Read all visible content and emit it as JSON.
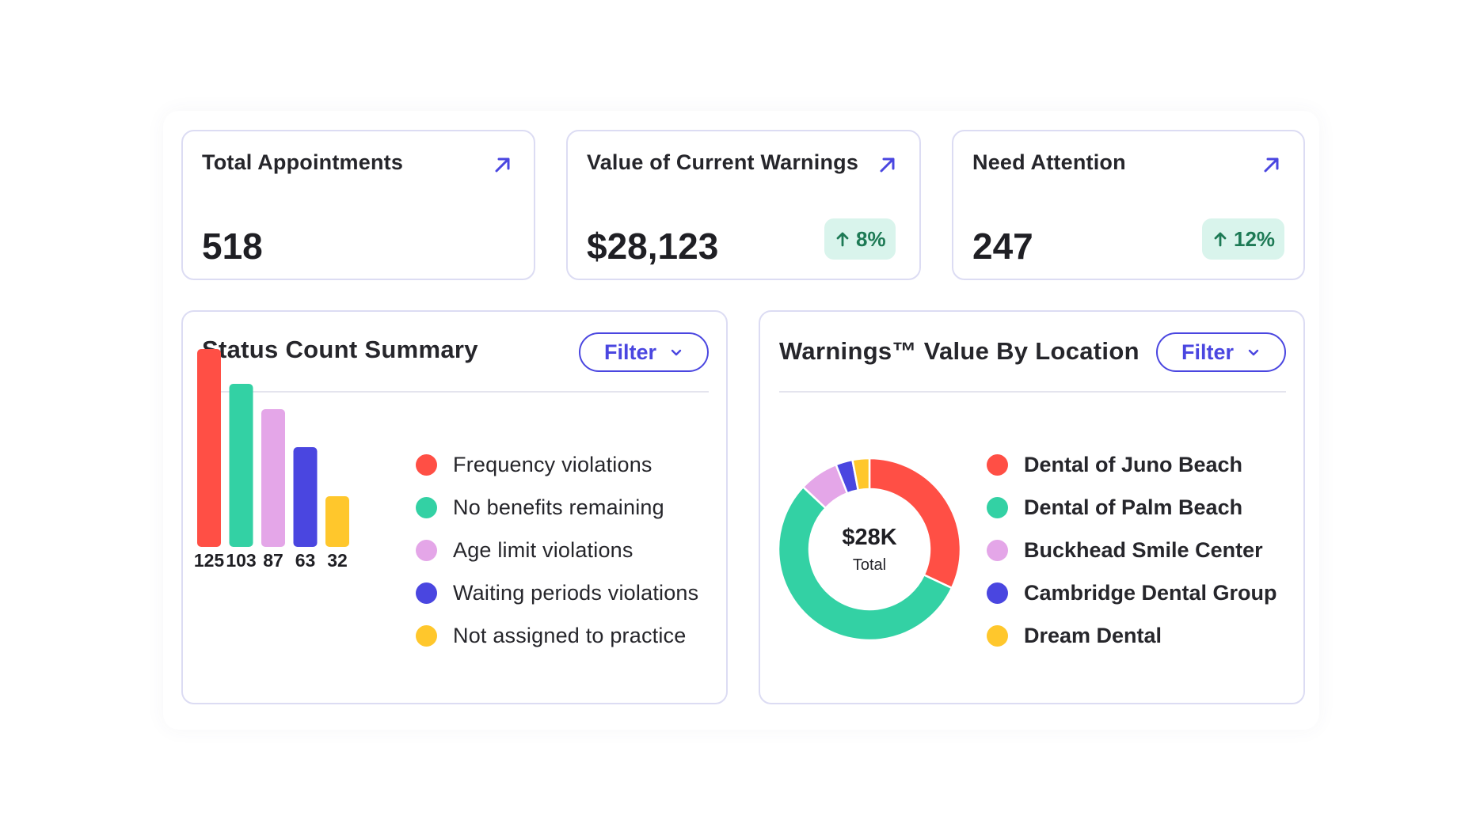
{
  "cards": [
    {
      "title": "Total Appointments",
      "value": "518",
      "badge": ""
    },
    {
      "title": "Value of Current Warnings",
      "value": "$28,123",
      "badge": "8%"
    },
    {
      "title": "Need Attention",
      "value": "247",
      "badge": "12%"
    }
  ],
  "icons": {
    "open": "arrow-up-right-icon",
    "trend": "arrow-up-icon",
    "dropdown": "chevron-down-icon"
  },
  "colors": {
    "accent": "#4a46e0",
    "badge_bg": "#d9f4ec",
    "badge_text": "#1d7a55"
  },
  "status_panel": {
    "title": "Status Count Summary",
    "filter_label": "Filter"
  },
  "location_panel": {
    "title": "Warnings™ Value By Location",
    "filter_label": "Filter"
  },
  "chart_data": [
    {
      "type": "bar",
      "title": "Status Count Summary",
      "categories": [
        "Frequency violations",
        "No benefits remaining",
        "Age limit violations",
        "Waiting periods violations",
        "Not assigned to practice"
      ],
      "values": [
        125,
        103,
        87,
        63,
        32
      ],
      "colors": [
        "#ff4f45",
        "#33d1a4",
        "#e4a6e8",
        "#4a46e0",
        "#ffc72c"
      ],
      "ylim": [
        0,
        125
      ],
      "grid": false,
      "legend": "right",
      "data_labels": true
    },
    {
      "type": "pie",
      "title": "Warnings™ Value By Location",
      "categories": [
        "Dental of Juno Beach",
        "Dental of Palm Beach",
        "Buckhead Smile Center",
        "Cambridge Dental Group",
        "Dream Dental"
      ],
      "values": [
        32,
        55,
        7,
        3,
        3
      ],
      "colors": [
        "#ff4f45",
        "#33d1a4",
        "#e4a6e8",
        "#4a46e0",
        "#ffc72c"
      ],
      "center_value": "$28K",
      "center_label": "Total",
      "legend": "right"
    }
  ]
}
